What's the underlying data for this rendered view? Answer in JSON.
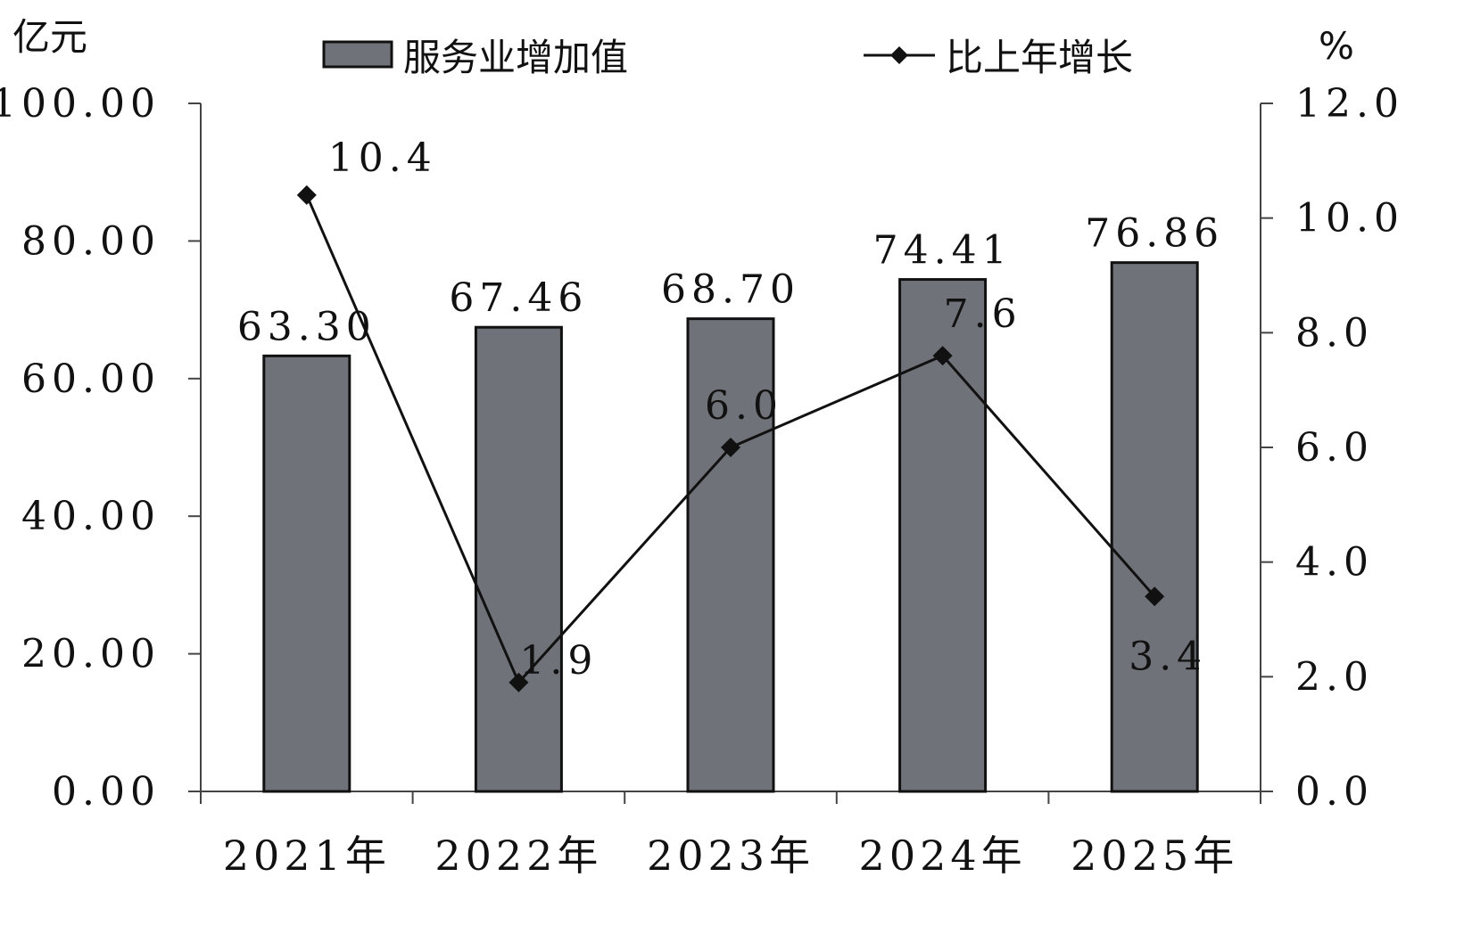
{
  "chart_data": {
    "type": "bar",
    "categories": [
      "2021年",
      "2022年",
      "2023年",
      "2024年",
      "2025年"
    ],
    "series": [
      {
        "name": "服务业增加值",
        "type": "bar",
        "axis": "left",
        "values": [
          63.3,
          67.46,
          68.7,
          74.41,
          76.86
        ],
        "labels": [
          "63.30",
          "67.46",
          "68.70",
          "74.41",
          "76.86"
        ]
      },
      {
        "name": "比上年增长",
        "type": "line",
        "axis": "right",
        "values": [
          10.4,
          1.9,
          6.0,
          7.6,
          3.4
        ],
        "labels": [
          "10.4",
          "1.9",
          "6.0",
          "7.6",
          "3.4"
        ]
      }
    ],
    "left_axis": {
      "unit": "亿元",
      "ylim": [
        0,
        100
      ],
      "ticks": [
        "0.00",
        "20.00",
        "40.00",
        "60.00",
        "80.00",
        "100.00"
      ]
    },
    "right_axis": {
      "unit": "%",
      "ylim": [
        0,
        12
      ],
      "ticks": [
        "0.0",
        "2.0",
        "4.0",
        "6.0",
        "8.0",
        "10.0",
        "12.0"
      ]
    },
    "legend": {
      "placement": "top"
    },
    "grid": false,
    "colors": {
      "bar_fill": "#6f7278",
      "bar_stroke": "#111111",
      "line": "#111111",
      "axis": "#444444",
      "text": "#111111"
    }
  }
}
